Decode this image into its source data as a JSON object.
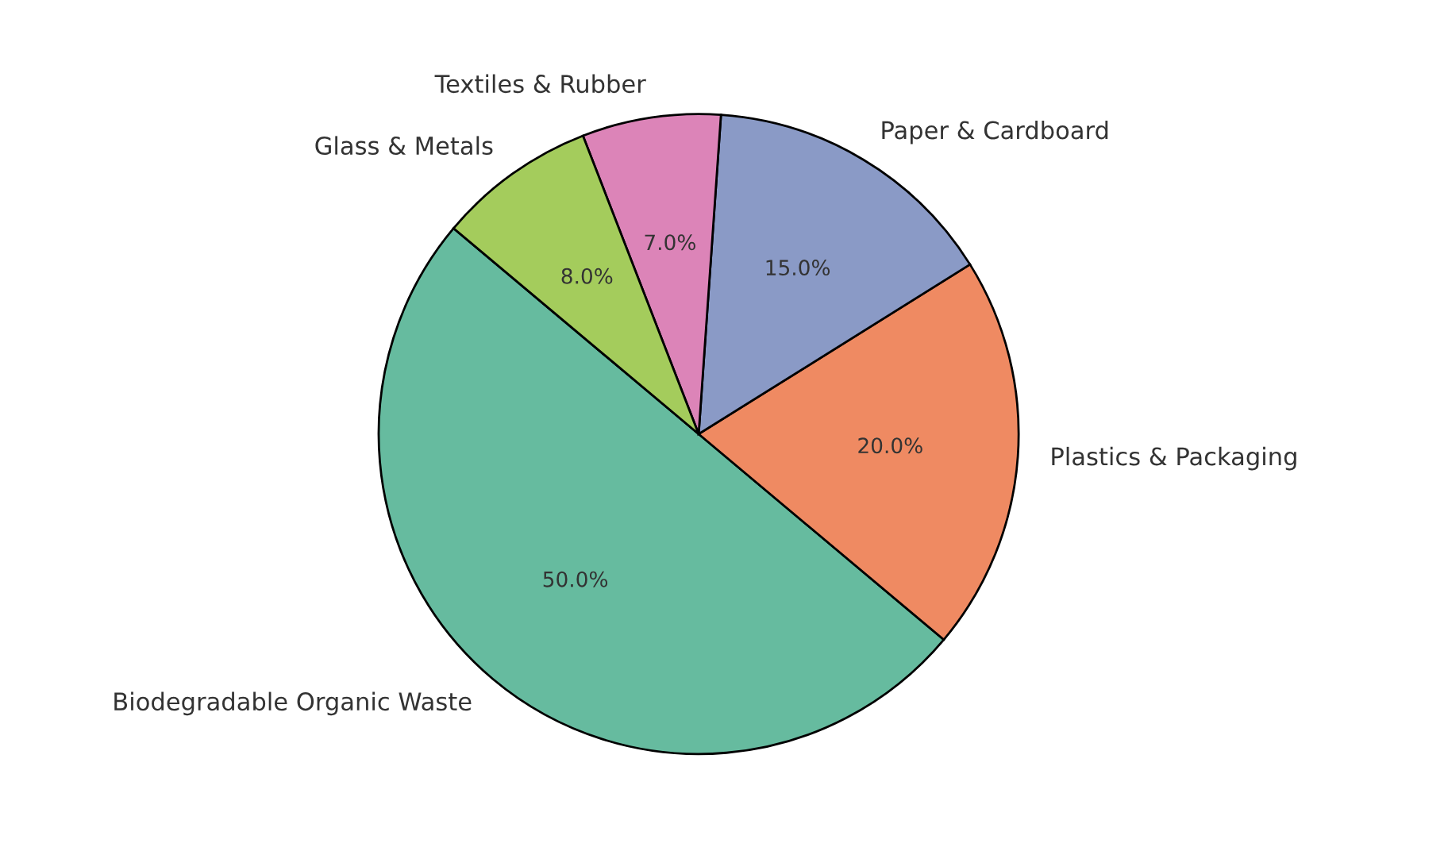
{
  "chart_data": {
    "type": "pie",
    "categories": [
      "Biodegradable Organic Waste",
      "Plastics & Packaging",
      "Paper & Cardboard",
      "Textiles & Rubber",
      "Glass & Metals"
    ],
    "values": [
      50,
      20,
      15,
      7,
      8
    ],
    "value_labels": [
      "50.0%",
      "20.0%",
      "15.0%",
      "7.0%",
      "8.0%"
    ],
    "colors": [
      "#66bb9f",
      "#ef8a62",
      "#8a9ac6",
      "#dc84b8",
      "#a4cc5c"
    ],
    "legend": false
  }
}
